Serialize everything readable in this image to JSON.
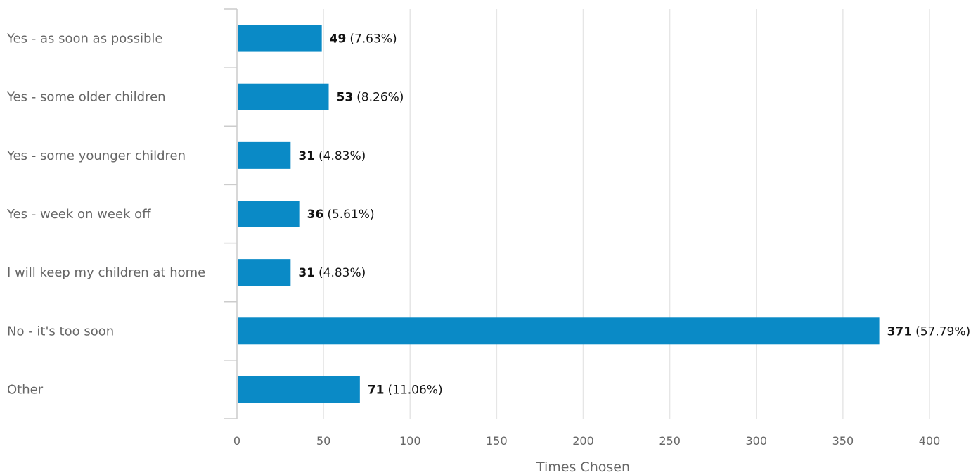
{
  "chart_data": {
    "type": "bar",
    "orientation": "horizontal",
    "categories": [
      "Yes - as soon as possible",
      "Yes - some older children",
      "Yes - some younger children",
      "Yes - week on week off",
      "I will keep my children at home",
      "No - it's too soon",
      "Other"
    ],
    "values": [
      49,
      53,
      31,
      36,
      31,
      371,
      71
    ],
    "percent_labels": [
      "(7.63%)",
      "(8.26%)",
      "(4.83%)",
      "(5.61%)",
      "(4.83%)",
      "(57.79%)",
      "(11.06%)"
    ],
    "xlabel": "Times Chosen",
    "xlim": [
      0,
      400
    ],
    "xticks": [
      0,
      50,
      100,
      150,
      200,
      250,
      300,
      350,
      400
    ],
    "grid": "vertical",
    "bar_color": "#0a8ac6",
    "grid_color": "#e6e6e6",
    "axis_color": "#cccccc"
  }
}
